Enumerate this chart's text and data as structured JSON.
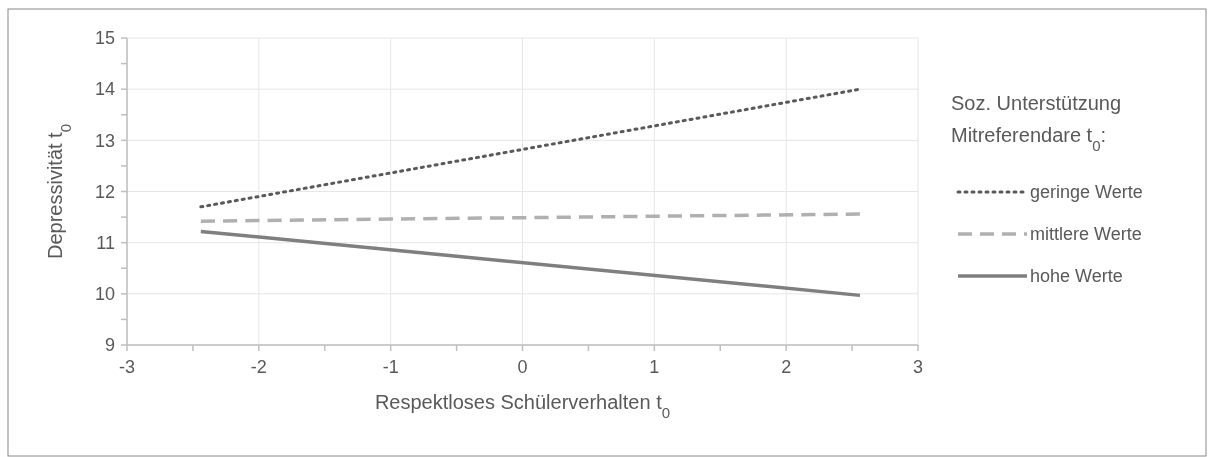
{
  "chart_data": {
    "type": "line",
    "xlabel": "Respektloses Schülerverhalten t$_{0}$",
    "ylabel": "Depressivität t$_{0}$",
    "legend_title": "Soz. Unterstützung Mitreferendare t$_{0}$:",
    "x": [
      -2.44,
      2.56
    ],
    "xlim": [
      -3,
      3
    ],
    "xticks": [
      -3,
      -2,
      -1,
      0,
      1,
      2,
      3
    ],
    "ylim": [
      9,
      15
    ],
    "yticks": [
      9,
      10,
      11,
      12,
      13,
      14,
      15
    ],
    "grid": true,
    "legend": "right",
    "series": [
      {
        "name": "geringe Werte",
        "color": "#595959",
        "line_style": "dotted",
        "values": [
          11.7,
          14.0
        ]
      },
      {
        "name": "mittlere Werte",
        "color": "#b0b0b0",
        "line_style": "dashed",
        "values": [
          11.42,
          11.56
        ]
      },
      {
        "name": "hohe Werte",
        "color": "#7f7f7f",
        "line_style": "solid",
        "values": [
          11.22,
          9.97
        ]
      }
    ]
  }
}
